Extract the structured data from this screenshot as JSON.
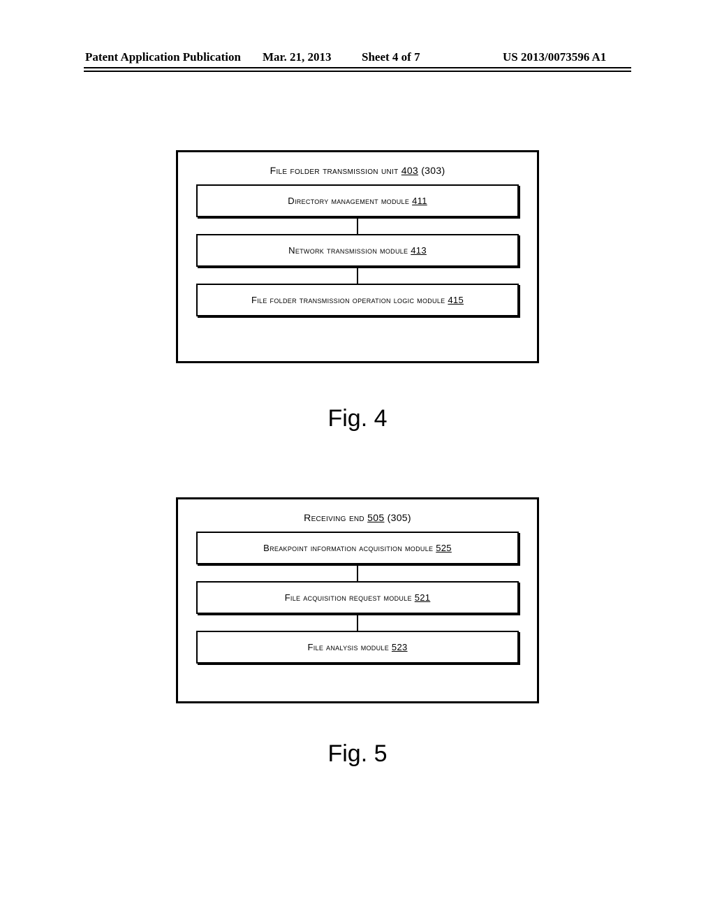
{
  "header": {
    "pub_type": "Patent Application Publication",
    "date": "Mar. 21, 2013",
    "sheet": "Sheet 4 of 7",
    "pub_number": "US 2013/0073596 A1"
  },
  "fig4": {
    "caption": "Fig. 4",
    "container": {
      "label": "File folder transmission unit",
      "ref": "403",
      "alt_ref": "(303)"
    },
    "modules": [
      {
        "label": "Directory management module",
        "ref": "411"
      },
      {
        "label": "Network transmission module",
        "ref": "413"
      },
      {
        "label": "File folder transmission operation logic module",
        "ref": "415"
      }
    ]
  },
  "fig5": {
    "caption": "Fig. 5",
    "container": {
      "label": "Receiving end",
      "ref": "505",
      "alt_ref": "(305)"
    },
    "modules": [
      {
        "label": "Breakpoint information acquisition module",
        "ref": "525"
      },
      {
        "label": "File acquisition request module",
        "ref": "521"
      },
      {
        "label": "File analysis module",
        "ref": "523"
      }
    ]
  }
}
